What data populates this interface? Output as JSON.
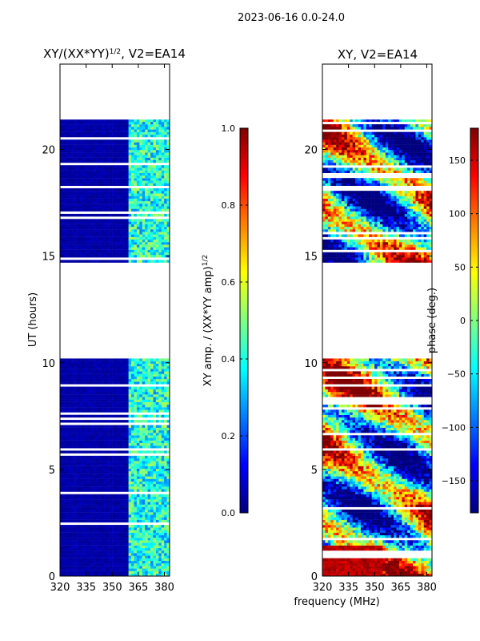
{
  "figure_title": "2023-06-16 0.0-24.0",
  "colors": {
    "jet": [
      "#00007f",
      "#0000ff",
      "#007fff",
      "#00ffff",
      "#7fff7f",
      "#ffff00",
      "#ff7f00",
      "#ff0000",
      "#7f0000"
    ],
    "frame": "#000000",
    "background": "#ffffff",
    "gap": "#ffffff"
  },
  "chart_data": [
    {
      "type": "heatmap",
      "title_main": "XY/(XX*YY)",
      "title_sup": "1/2",
      "title_suffix": ", V2=EA14",
      "xlabel": "",
      "ylabel": "UT (hours)",
      "xlim": [
        320,
        383
      ],
      "ylim": [
        0,
        24
      ],
      "xticks": [
        320,
        335,
        350,
        365,
        380
      ],
      "xtick_labels": [
        "320",
        "335",
        "350",
        "365",
        "380"
      ],
      "yticks": [
        0,
        5,
        10,
        15,
        20
      ],
      "ytick_labels": [
        "0",
        "5",
        "10",
        "15",
        "20"
      ],
      "data_ranges_hours": [
        [
          0,
          10.2
        ],
        [
          14.7,
          21.4
        ]
      ],
      "low_signal_channel_range_mhz": [
        320,
        360
      ],
      "high_signal_channel_range_mhz": [
        360,
        383
      ],
      "low_signal_value": 0.02,
      "high_signal_value_range": [
        0.25,
        0.55
      ],
      "colorbar": {
        "label_main": "XY amp. / (XX*YY amp)",
        "label_sup": "1/2",
        "vmin": 0.0,
        "vmax": 1.0,
        "ticks": [
          0.0,
          0.2,
          0.4,
          0.6,
          0.8,
          1.0
        ],
        "tick_labels": [
          "0.0",
          "0.2",
          "0.4",
          "0.6",
          "0.8",
          "1.0"
        ]
      }
    },
    {
      "type": "heatmap",
      "title_main": "XY, V2=EA14",
      "xlabel": "frequency (MHz)",
      "ylabel": "",
      "xlim": [
        320,
        383
      ],
      "ylim": [
        0,
        24
      ],
      "xticks": [
        320,
        335,
        350,
        365,
        380
      ],
      "xtick_labels": [
        "320",
        "335",
        "350",
        "365",
        "380"
      ],
      "yticks": [
        0,
        5,
        10,
        15,
        20
      ],
      "ytick_labels": [
        "0",
        "5",
        "10",
        "15",
        "20"
      ],
      "data_ranges_hours": [
        [
          0,
          10.2
        ],
        [
          14.7,
          21.4
        ]
      ],
      "value_range_deg": [
        -180,
        180
      ],
      "colorbar": {
        "label": "phase (deg.)",
        "vmin": -180,
        "vmax": 180,
        "ticks": [
          -150,
          -100,
          -50,
          0,
          50,
          100,
          150
        ],
        "tick_labels": [
          "−150",
          "−100",
          "−50",
          "0",
          "50",
          "100",
          "150"
        ]
      }
    }
  ]
}
